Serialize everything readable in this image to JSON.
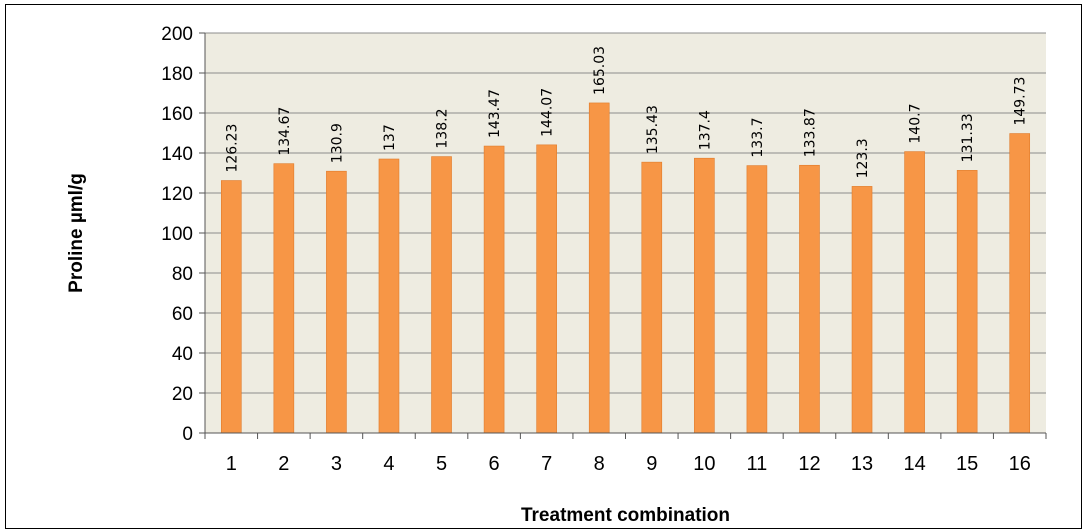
{
  "chart_data": {
    "type": "bar",
    "categories": [
      "1",
      "2",
      "3",
      "4",
      "5",
      "6",
      "7",
      "8",
      "9",
      "10",
      "11",
      "12",
      "13",
      "14",
      "15",
      "16"
    ],
    "values": [
      126.23,
      134.67,
      130.9,
      137,
      138.2,
      143.47,
      144.07,
      165.03,
      135.43,
      137.4,
      133.7,
      133.87,
      123.3,
      140.7,
      131.33,
      149.73
    ],
    "data_labels": [
      "126.23",
      "134.67",
      "130.9",
      "137",
      "138.2",
      "143.47",
      "144.07",
      "165.03",
      "135.43",
      "137.4",
      "133.7",
      "133.87",
      "123.3",
      "140.7",
      "131.33",
      "149.73"
    ],
    "xlabel": "Treatment combination",
    "ylabel": "Proline µml/g",
    "ylim": [
      0,
      200
    ],
    "yticks": [
      "0",
      "20",
      "40",
      "60",
      "80",
      "100",
      "120",
      "140",
      "160",
      "180",
      "200"
    ],
    "grid": true,
    "legend": "none",
    "colors": {
      "bar": "#f79646",
      "bar_edge": "#e07b2a",
      "plot_background": "#eeece1",
      "grid": "#8c8c8c"
    }
  }
}
